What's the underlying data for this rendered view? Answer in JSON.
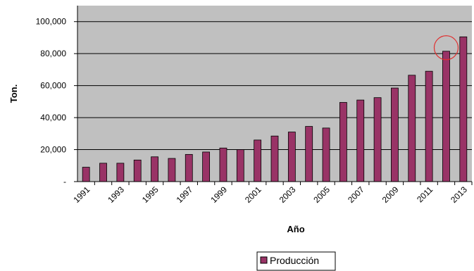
{
  "chart_data": {
    "type": "bar",
    "title": "",
    "xlabel": "Año",
    "ylabel": "Ton.",
    "categories": [
      "1991",
      "1992",
      "1993",
      "1994",
      "1995",
      "1996",
      "1997",
      "1998",
      "1999",
      "2000",
      "2001",
      "2002",
      "2003",
      "2004",
      "2005",
      "2006",
      "2007",
      "2008",
      "2009",
      "2010",
      "2011",
      "2012",
      "2013"
    ],
    "x_tick_labels": [
      "1991",
      "1993",
      "1995",
      "1997",
      "1999",
      "2001",
      "2003",
      "2005",
      "2007",
      "2009",
      "2011",
      "2013"
    ],
    "series": [
      {
        "name": "Producción",
        "color": "#993366",
        "values": [
          9000,
          11500,
          11500,
          13500,
          15500,
          14500,
          17000,
          18500,
          21000,
          20000,
          26000,
          28500,
          31000,
          34500,
          33500,
          49500,
          51000,
          52500,
          58500,
          66500,
          69000,
          81500,
          90500
        ]
      }
    ],
    "y_ticks": [
      {
        "value": 0,
        "label": "-"
      },
      {
        "value": 20000,
        "label": "20,000"
      },
      {
        "value": 40000,
        "label": "40,000"
      },
      {
        "value": 60000,
        "label": "60,000"
      },
      {
        "value": 80000,
        "label": "80,000"
      },
      {
        "value": 100000,
        "label": "100,000"
      }
    ],
    "ylim": [
      0,
      110000
    ],
    "grid": true,
    "plot_background": "#c0c0c0",
    "legend_position": "bottom",
    "annotation": {
      "type": "circle",
      "category": "2012",
      "color": "#e03030"
    }
  }
}
